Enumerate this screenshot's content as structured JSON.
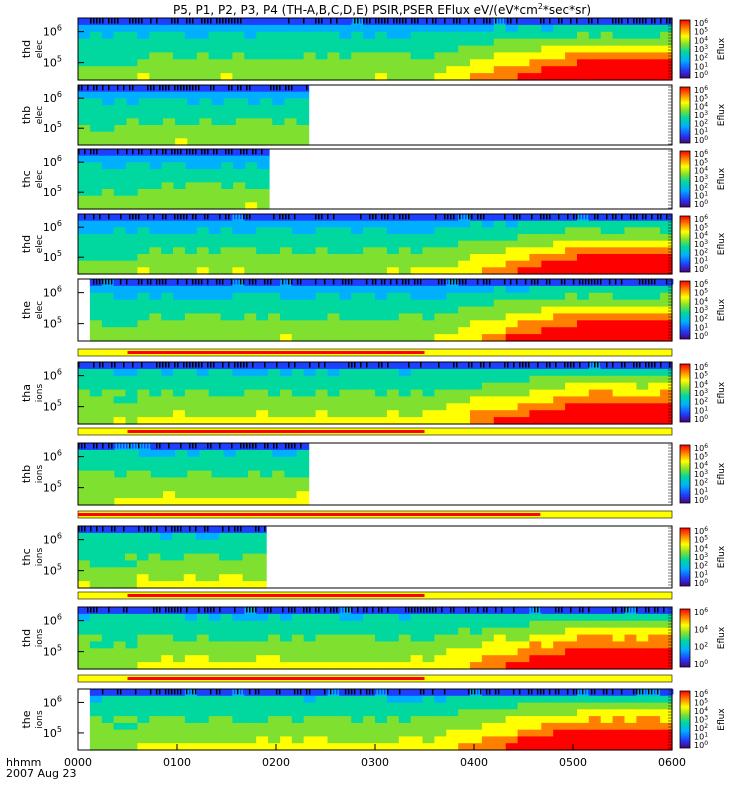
{
  "title": "P5, P1, P2, P3, P4 (TH-A,B,C,D,E) PSIR,PSER EFlux eV/(eV*cm",
  "title_sup": "2",
  "title_end": "*sec*sr)",
  "time_axis": {
    "label_line1": "hhmm",
    "label_line2": "2007 Aug 23",
    "ticks": [
      "0000",
      "0100",
      "0200",
      "0300",
      "0400",
      "0500",
      "0600"
    ],
    "range_hours": [
      0,
      6
    ]
  },
  "colors": {
    "spectrogram_scale": [
      "#4a0080",
      "#1f3fff",
      "#00b0ff",
      "#00d8a0",
      "#7fe030",
      "#ffff00",
      "#ff8000",
      "#ff0000"
    ],
    "mode_bar_fast": "#ff0000",
    "mode_bar_slow": "#ffff00"
  },
  "chart_data": [
    {
      "type": "heatmap",
      "probe": "thd",
      "label_line1": "thd",
      "label_line2": "elec",
      "ylabel": "",
      "yticks": [
        {
          "base": "10",
          "exp": "5"
        },
        {
          "base": "10",
          "exp": "6"
        }
      ],
      "data_hours": [
        0,
        6
      ],
      "white_start_hours": null,
      "colorbar": {
        "label": "Eflux",
        "ticks": [
          {
            "base": "10",
            "exp": "6"
          },
          {
            "base": "10",
            "exp": "5"
          },
          {
            "base": "10",
            "exp": "4"
          },
          {
            "base": "10",
            "exp": "3"
          },
          {
            "base": "10",
            "exp": "2"
          },
          {
            "base": "10",
            "exp": "1"
          },
          {
            "base": "10",
            "exp": "0"
          }
        ]
      }
    },
    {
      "type": "heatmap",
      "probe": "thb",
      "label_line1": "thb",
      "label_line2": "elec",
      "ylabel": "",
      "yticks": [
        {
          "base": "10",
          "exp": "5"
        },
        {
          "base": "10",
          "exp": "6"
        }
      ],
      "data_hours": [
        0,
        2.33
      ],
      "white_start_hours": 2.33,
      "colorbar": {
        "label": "Eflux",
        "ticks": [
          {
            "base": "10",
            "exp": "6"
          },
          {
            "base": "10",
            "exp": "5"
          },
          {
            "base": "10",
            "exp": "4"
          },
          {
            "base": "10",
            "exp": "3"
          },
          {
            "base": "10",
            "exp": "2"
          },
          {
            "base": "10",
            "exp": "1"
          },
          {
            "base": "10",
            "exp": "0"
          }
        ]
      }
    },
    {
      "type": "heatmap",
      "probe": "thc",
      "label_line1": "thc",
      "label_line2": "elec",
      "ylabel": "",
      "yticks": [
        {
          "base": "10",
          "exp": "5"
        },
        {
          "base": "10",
          "exp": "6"
        }
      ],
      "data_hours": [
        0,
        1.93
      ],
      "white_start_hours": 1.93,
      "colorbar": {
        "label": "Eflux",
        "ticks": [
          {
            "base": "10",
            "exp": "6"
          },
          {
            "base": "10",
            "exp": "5"
          },
          {
            "base": "10",
            "exp": "4"
          },
          {
            "base": "10",
            "exp": "3"
          },
          {
            "base": "10",
            "exp": "2"
          },
          {
            "base": "10",
            "exp": "1"
          },
          {
            "base": "10",
            "exp": "0"
          }
        ]
      }
    },
    {
      "type": "heatmap",
      "probe": "thd",
      "label_line1": "thd",
      "label_line2": "elec",
      "ylabel": "",
      "yticks": [
        {
          "base": "10",
          "exp": "5"
        },
        {
          "base": "10",
          "exp": "6"
        }
      ],
      "data_hours": [
        0,
        6
      ],
      "white_start_hours": null,
      "colorbar": {
        "label": "Eflux",
        "ticks": [
          {
            "base": "10",
            "exp": "6"
          },
          {
            "base": "10",
            "exp": "5"
          },
          {
            "base": "10",
            "exp": "4"
          },
          {
            "base": "10",
            "exp": "3"
          },
          {
            "base": "10",
            "exp": "2"
          },
          {
            "base": "10",
            "exp": "1"
          },
          {
            "base": "10",
            "exp": "0"
          }
        ]
      }
    },
    {
      "type": "heatmap",
      "probe": "the",
      "label_line1": "the",
      "label_line2": "elec",
      "ylabel": "",
      "yticks": [
        {
          "base": "10",
          "exp": "5"
        },
        {
          "base": "10",
          "exp": "6"
        }
      ],
      "data_hours": [
        0.12,
        6
      ],
      "white_start_hours": null,
      "colorbar": {
        "label": "Eflux",
        "ticks": [
          {
            "base": "10",
            "exp": "6"
          },
          {
            "base": "10",
            "exp": "5"
          },
          {
            "base": "10",
            "exp": "4"
          },
          {
            "base": "10",
            "exp": "3"
          },
          {
            "base": "10",
            "exp": "2"
          },
          {
            "base": "10",
            "exp": "1"
          },
          {
            "base": "10",
            "exp": "0"
          }
        ]
      }
    },
    {
      "type": "heatmap",
      "probe": "tha",
      "label_line1": "tha",
      "label_line2": "ions",
      "ylabel": "",
      "yticks": [
        {
          "base": "10",
          "exp": "5"
        },
        {
          "base": "10",
          "exp": "6"
        }
      ],
      "data_hours": [
        0,
        6
      ],
      "white_start_hours": null,
      "colorbar": {
        "label": "Eflux",
        "ticks": [
          {
            "base": "10",
            "exp": "6"
          },
          {
            "base": "10",
            "exp": "5"
          },
          {
            "base": "10",
            "exp": "4"
          },
          {
            "base": "10",
            "exp": "3"
          },
          {
            "base": "10",
            "exp": "2"
          },
          {
            "base": "10",
            "exp": "1"
          },
          {
            "base": "10",
            "exp": "0"
          }
        ]
      }
    },
    {
      "type": "heatmap",
      "probe": "thb",
      "label_line1": "thb",
      "label_line2": "ions",
      "ylabel": "",
      "yticks": [
        {
          "base": "10",
          "exp": "5"
        },
        {
          "base": "10",
          "exp": "6"
        }
      ],
      "data_hours": [
        0,
        2.33
      ],
      "white_start_hours": 2.33,
      "colorbar": {
        "label": "Eflux",
        "ticks": [
          {
            "base": "10",
            "exp": "6"
          },
          {
            "base": "10",
            "exp": "5"
          },
          {
            "base": "10",
            "exp": "4"
          },
          {
            "base": "10",
            "exp": "3"
          },
          {
            "base": "10",
            "exp": "2"
          },
          {
            "base": "10",
            "exp": "1"
          },
          {
            "base": "10",
            "exp": "0"
          }
        ]
      }
    },
    {
      "type": "heatmap",
      "probe": "thc",
      "label_line1": "thc",
      "label_line2": "ions",
      "ylabel": "",
      "yticks": [
        {
          "base": "10",
          "exp": "5"
        },
        {
          "base": "10",
          "exp": "6"
        }
      ],
      "data_hours": [
        0,
        1.9
      ],
      "white_start_hours": 1.9,
      "colorbar": {
        "label": "Eflux",
        "ticks": [
          {
            "base": "10",
            "exp": "6"
          },
          {
            "base": "10",
            "exp": "5"
          },
          {
            "base": "10",
            "exp": "4"
          },
          {
            "base": "10",
            "exp": "3"
          },
          {
            "base": "10",
            "exp": "2"
          },
          {
            "base": "10",
            "exp": "1"
          },
          {
            "base": "10",
            "exp": "0"
          }
        ]
      }
    },
    {
      "type": "heatmap",
      "probe": "thd",
      "label_line1": "thd",
      "label_line2": "ions",
      "ylabel": "",
      "yticks": [
        {
          "base": "10",
          "exp": "5"
        },
        {
          "base": "10",
          "exp": "6"
        }
      ],
      "data_hours": [
        0,
        6
      ],
      "white_start_hours": null,
      "colorbar": {
        "label": "Eflux",
        "ticks": [
          {
            "base": "10",
            "exp": "6"
          },
          {
            "base": "10",
            "exp": "4"
          },
          {
            "base": "10",
            "exp": "2"
          },
          {
            "base": "10",
            "exp": "0"
          }
        ]
      }
    },
    {
      "type": "heatmap",
      "probe": "the",
      "label_line1": "the",
      "label_line2": "ions",
      "ylabel": "",
      "yticks": [
        {
          "base": "10",
          "exp": "5"
        },
        {
          "base": "10",
          "exp": "6"
        }
      ],
      "data_hours": [
        0.12,
        6
      ],
      "white_start_hours": null,
      "colorbar": {
        "label": "Eflux",
        "ticks": [
          {
            "base": "10",
            "exp": "6"
          },
          {
            "base": "10",
            "exp": "5"
          },
          {
            "base": "10",
            "exp": "4"
          },
          {
            "base": "10",
            "exp": "3"
          },
          {
            "base": "10",
            "exp": "2"
          },
          {
            "base": "10",
            "exp": "1"
          },
          {
            "base": "10",
            "exp": "0"
          }
        ]
      }
    }
  ],
  "mode_bars": [
    {
      "after_panel": 4,
      "fast_hours": [
        0.5,
        3.5
      ]
    },
    {
      "after_panel": 5,
      "fast_hours": [
        0.5,
        3.5
      ]
    },
    {
      "after_panel": 6,
      "fast_hours": [
        0,
        4.67
      ]
    },
    {
      "after_panel": 7,
      "fast_hours": [
        0.5,
        3.5
      ]
    },
    {
      "after_panel": 8,
      "fast_hours": [
        0.5,
        3.5
      ]
    }
  ]
}
